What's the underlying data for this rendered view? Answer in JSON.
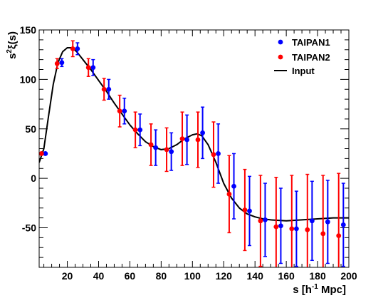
{
  "chart_data": {
    "type": "scatter",
    "xlabel_main": "s [h",
    "xlabel_sup": "-1",
    "xlabel_end": " Mpc]",
    "ylabel_main": "s",
    "ylabel_sup": "2",
    "ylabel_end": "ξ(s)",
    "xlim": [
      2,
      200
    ],
    "ylim": [
      -90,
      150
    ],
    "x_ticks": [
      20,
      40,
      60,
      80,
      100,
      120,
      140,
      160,
      180,
      200
    ],
    "y_ticks": [
      -50,
      0,
      50,
      100,
      150
    ],
    "legend_position": "top-right",
    "series": [
      {
        "name": "TAIPAN1",
        "color": "#0000ff",
        "x": [
          6,
          16.5,
          26.5,
          36.5,
          46.5,
          56.5,
          66.5,
          76.5,
          86.5,
          96.5,
          106.5,
          116.5,
          126.5,
          136.5,
          146.5,
          156.5,
          166.5,
          176.5,
          186.5,
          196.5
        ],
        "y": [
          25,
          117,
          131,
          112,
          90,
          68,
          49,
          31,
          27,
          39,
          46,
          25,
          -8,
          -33,
          -42,
          -48,
          -51,
          -43,
          -44,
          -47
        ],
        "err": [
          0,
          4,
          6,
          8,
          10,
          13,
          16,
          18,
          19,
          25,
          26,
          30,
          33,
          35,
          37,
          38,
          38,
          40,
          42,
          42
        ]
      },
      {
        "name": "TAIPAN2",
        "color": "#ff0000",
        "x": [
          3.5,
          13.5,
          23.5,
          33.5,
          43.5,
          53.5,
          63.5,
          73.5,
          83.5,
          93.5,
          103.5,
          113.5,
          123.5,
          133.5,
          143.5,
          153.5,
          163.5,
          173.5,
          183.5,
          193.5
        ],
        "y": [
          25,
          116,
          131,
          112,
          90,
          68,
          49,
          34,
          29,
          40,
          39,
          24,
          -16,
          -32,
          -43,
          -49,
          -51,
          -52,
          -56,
          -58
        ],
        "err": [
          0,
          5,
          8,
          9,
          11,
          16,
          18,
          21,
          22,
          27,
          28,
          33,
          39,
          41,
          46,
          50,
          54,
          56,
          59,
          63
        ]
      },
      {
        "name": "Input",
        "color": "#000000",
        "x": [
          2,
          5,
          8,
          11,
          14,
          17,
          20,
          23,
          26,
          30,
          35,
          40,
          45,
          50,
          55,
          60,
          65,
          70,
          75,
          80,
          85,
          90,
          95,
          100,
          103,
          106,
          110,
          115,
          120,
          125,
          130,
          135,
          140,
          145,
          150,
          160,
          170,
          180,
          190,
          200
        ],
        "y": [
          16,
          30,
          63,
          95,
          117,
          128,
          132,
          132,
          128,
          120,
          110,
          99,
          88,
          76,
          65,
          54,
          45,
          37,
          32,
          29,
          30,
          34,
          40,
          44,
          45,
          43,
          34,
          16,
          -5,
          -20,
          -30,
          -36,
          -39,
          -41,
          -42,
          -43,
          -42,
          -41,
          -40,
          -40
        ]
      }
    ]
  }
}
